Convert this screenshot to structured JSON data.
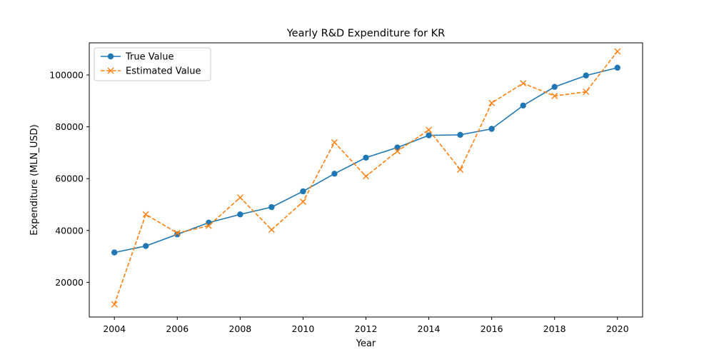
{
  "colors": {
    "true_series": "#1f77b4",
    "estimated_series": "#ff7f0e",
    "axes": "#000000",
    "background": "#ffffff"
  },
  "chart_data": {
    "type": "line",
    "title": "Yearly R&D Expenditure for KR",
    "xlabel": "Year",
    "ylabel": "Expenditure (MLN_USD)",
    "x": [
      2004,
      2005,
      2006,
      2007,
      2008,
      2009,
      2010,
      2011,
      2012,
      2013,
      2014,
      2015,
      2016,
      2017,
      2018,
      2019,
      2020
    ],
    "series": [
      {
        "name": "True Value",
        "marker": "circle",
        "line_style": "solid",
        "color": "#1f77b4",
        "values": [
          31500,
          34000,
          38500,
          43000,
          46200,
          49000,
          55100,
          61900,
          68100,
          72000,
          76700,
          76900,
          79200,
          88200,
          95400,
          99800,
          102800
        ]
      },
      {
        "name": "Estimated Value",
        "marker": "x",
        "line_style": "dashed",
        "color": "#ff7f0e",
        "values": [
          11500,
          46200,
          39000,
          41800,
          52700,
          40300,
          51100,
          74000,
          60900,
          70600,
          78800,
          63500,
          89200,
          96800,
          91900,
          93500,
          109100
        ]
      }
    ],
    "xlim": [
      2003.2,
      2020.8
    ],
    "ylim": [
      6600,
      112400
    ],
    "xticks": [
      2004,
      2006,
      2008,
      2010,
      2012,
      2014,
      2016,
      2018,
      2020
    ],
    "yticks": [
      20000,
      40000,
      60000,
      80000,
      100000
    ],
    "legend_position": "top-left",
    "grid": false
  }
}
